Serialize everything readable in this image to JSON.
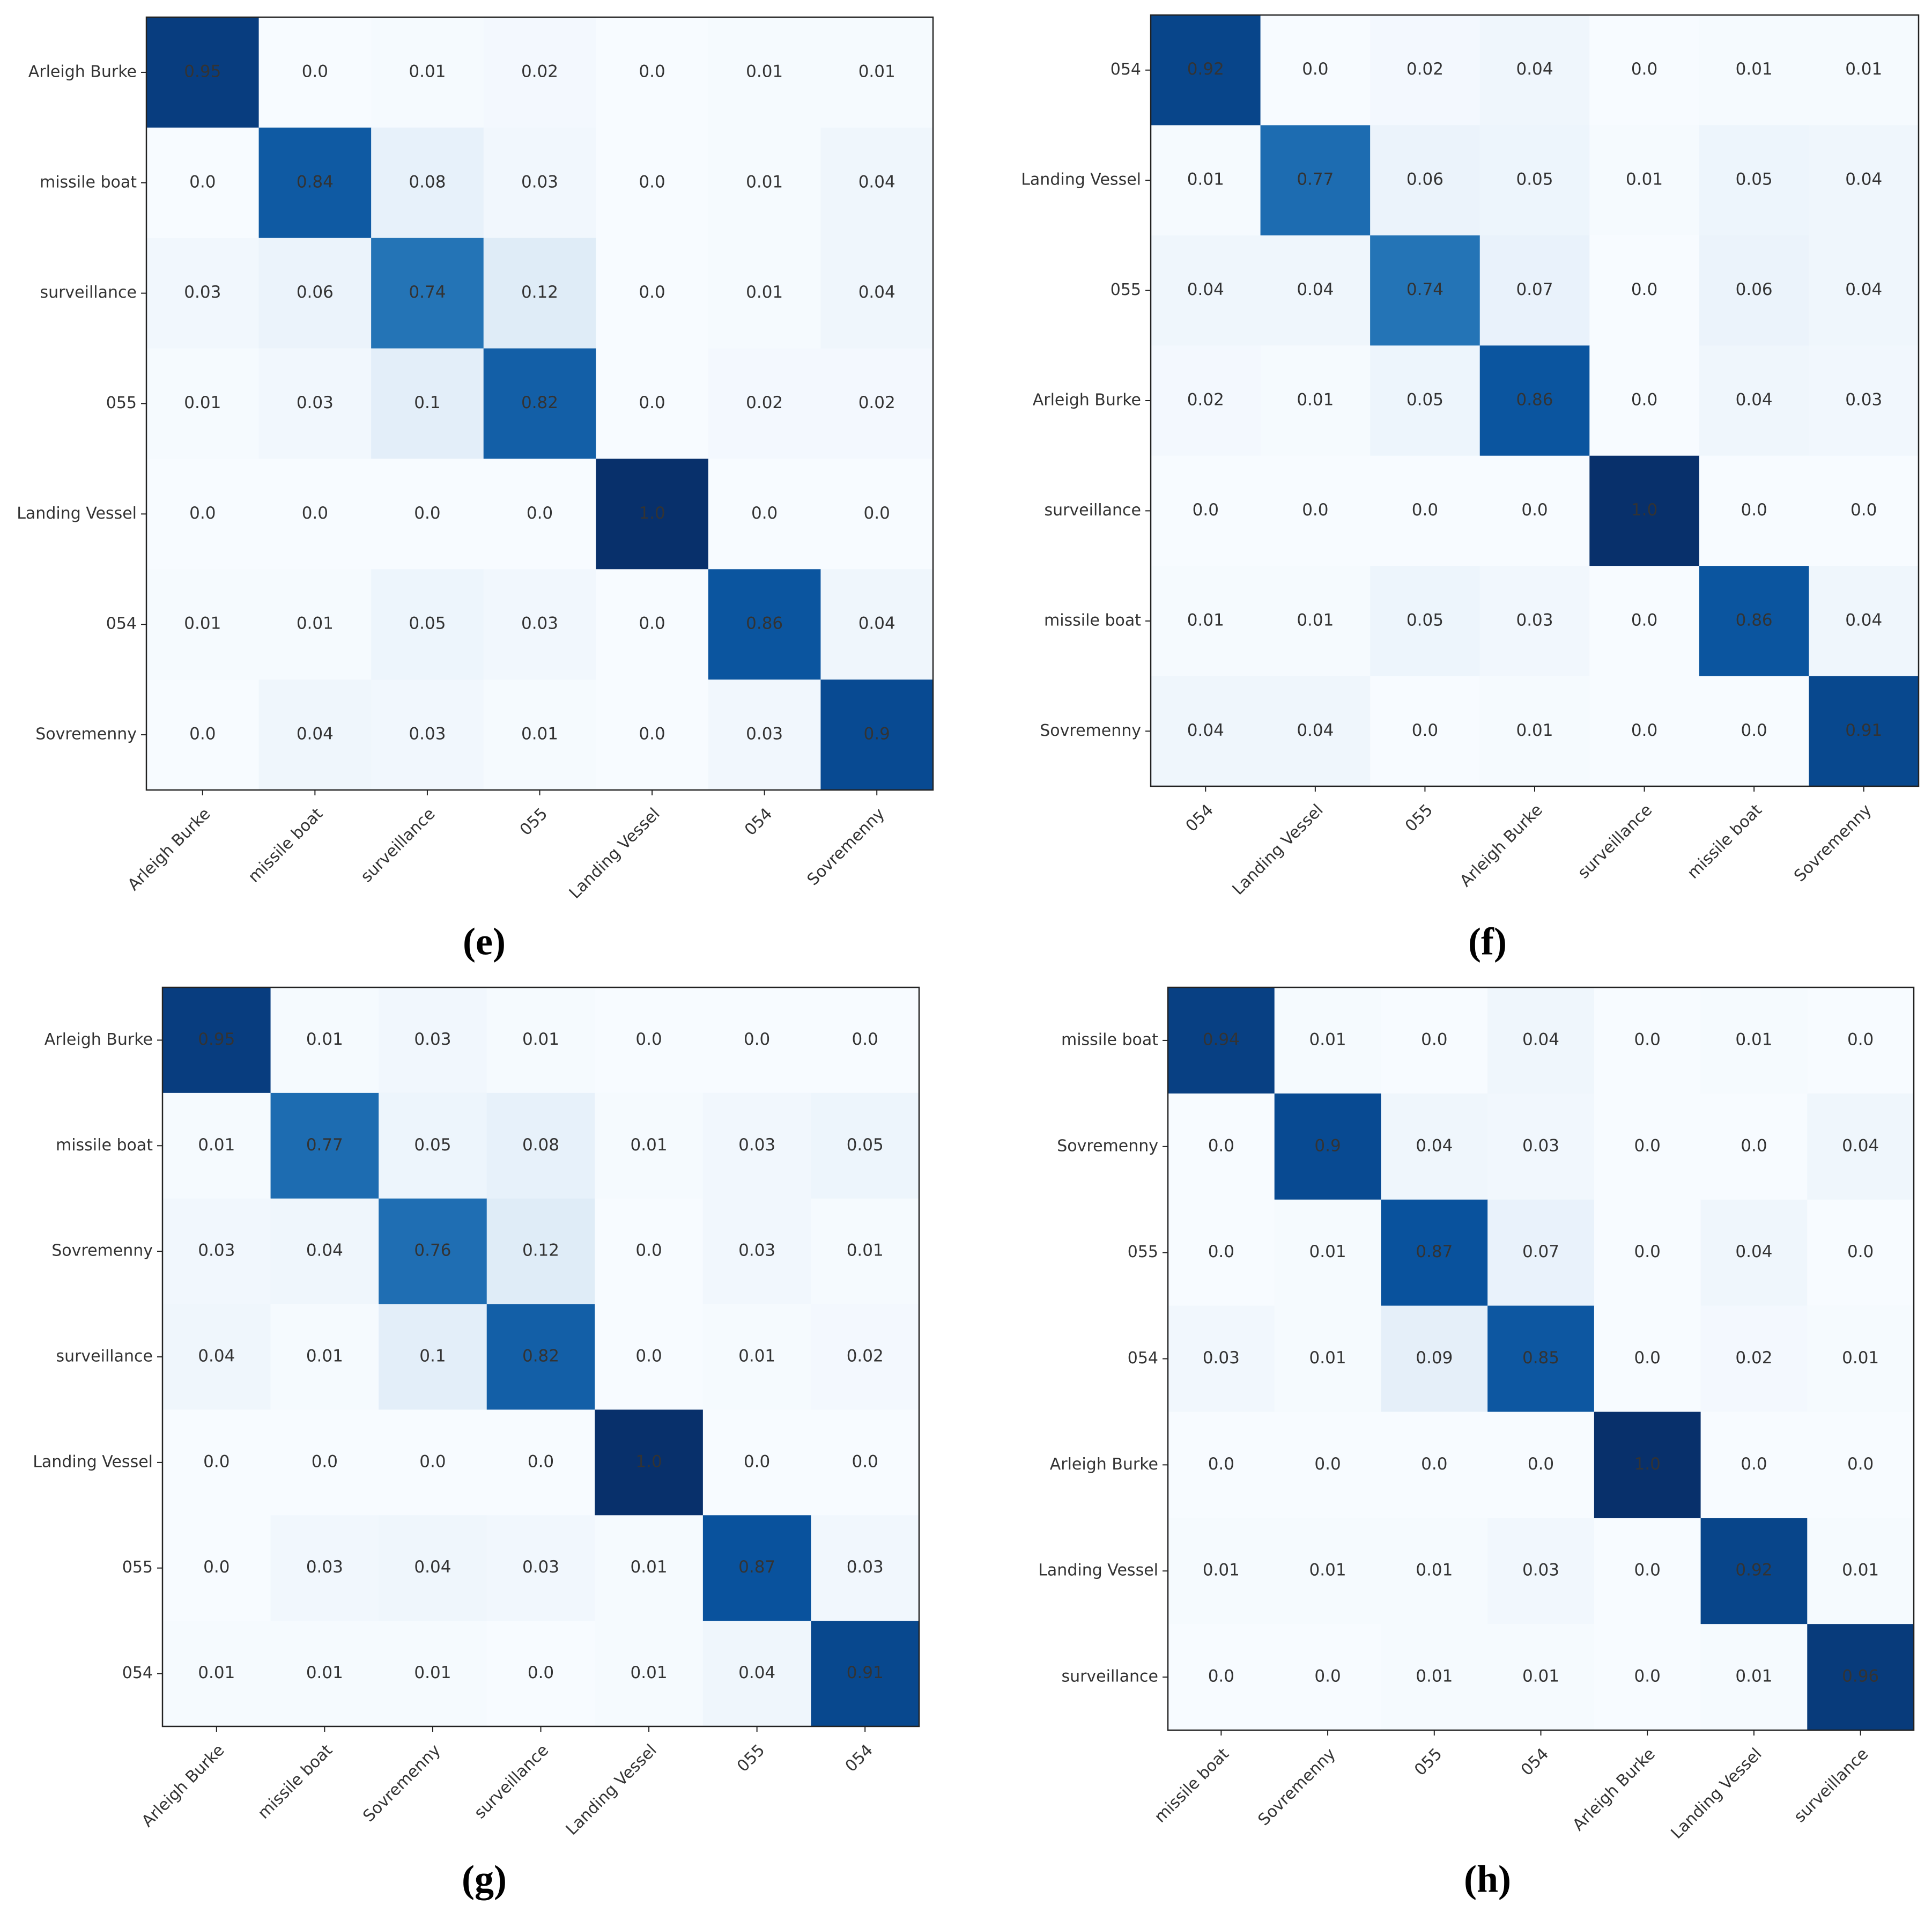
{
  "chart_data": [
    {
      "type": "heatmap",
      "caption": "(e)",
      "categories": [
        "Arleigh Burke",
        "missile boat",
        "surveillance",
        "055",
        "Landing Vessel",
        "054",
        "Sovremenny"
      ],
      "values": [
        [
          0.95,
          0,
          0.01,
          0.02,
          0,
          0.01,
          0.01
        ],
        [
          0,
          0.84,
          0.08,
          0.03,
          0,
          0.01,
          0.04
        ],
        [
          0.03,
          0.06,
          0.74,
          0.12,
          0,
          0.01,
          0.04
        ],
        [
          0.01,
          0.03,
          0.1,
          0.82,
          0,
          0.02,
          0.02
        ],
        [
          0,
          0,
          0,
          0,
          1,
          0,
          0
        ],
        [
          0.01,
          0.01,
          0.05,
          0.03,
          0,
          0.86,
          0.04
        ],
        [
          0,
          0.04,
          0.03,
          0.01,
          0,
          0.03,
          0.9
        ]
      ],
      "value_labels": [
        [
          "0.95",
          "0.0",
          "0.01",
          "0.02",
          "0.0",
          "0.01",
          "0.01"
        ],
        [
          "0.0",
          "0.84",
          "0.08",
          "0.03",
          "0.0",
          "0.01",
          "0.04"
        ],
        [
          "0.03",
          "0.06",
          "0.74",
          "0.12",
          "0.0",
          "0.01",
          "0.04"
        ],
        [
          "0.01",
          "0.03",
          "0.1",
          "0.82",
          "0.0",
          "0.02",
          "0.02"
        ],
        [
          "0.0",
          "0.0",
          "0.0",
          "0.0",
          "1.0",
          "0.0",
          "0.0"
        ],
        [
          "0.01",
          "0.01",
          "0.05",
          "0.03",
          "0.0",
          "0.86",
          "0.04"
        ],
        [
          "0.0",
          "0.04",
          "0.03",
          "0.01",
          "0.0",
          "0.03",
          "0.9"
        ]
      ],
      "colormap": [
        "#f7fbff",
        "#deebf7",
        "#c6dbef",
        "#9ecae1",
        "#6baed6",
        "#4292c6",
        "#2171b5",
        "#08519c",
        "#08306b"
      ]
    },
    {
      "type": "heatmap",
      "caption": "(f)",
      "categories": [
        "054",
        "Landing Vessel",
        "055",
        "Arleigh Burke",
        "surveillance",
        "missile boat",
        "Sovremenny"
      ],
      "values": [
        [
          0.92,
          0,
          0.02,
          0.04,
          0,
          0.01,
          0.01
        ],
        [
          0.01,
          0.77,
          0.06,
          0.05,
          0.01,
          0.05,
          0.04
        ],
        [
          0.04,
          0.04,
          0.74,
          0.07,
          0,
          0.06,
          0.04
        ],
        [
          0.02,
          0.01,
          0.05,
          0.86,
          0,
          0.04,
          0.03
        ],
        [
          0,
          0,
          0,
          0,
          1,
          0,
          0
        ],
        [
          0.01,
          0.01,
          0.05,
          0.03,
          0,
          0.86,
          0.04
        ],
        [
          0.04,
          0.04,
          0,
          0.01,
          0,
          0,
          0.91
        ]
      ],
      "value_labels": [
        [
          "0.92",
          "0.0",
          "0.02",
          "0.04",
          "0.0",
          "0.01",
          "0.01"
        ],
        [
          "0.01",
          "0.77",
          "0.06",
          "0.05",
          "0.01",
          "0.05",
          "0.04"
        ],
        [
          "0.04",
          "0.04",
          "0.74",
          "0.07",
          "0.0",
          "0.06",
          "0.04"
        ],
        [
          "0.02",
          "0.01",
          "0.05",
          "0.86",
          "0.0",
          "0.04",
          "0.03"
        ],
        [
          "0.0",
          "0.0",
          "0.0",
          "0.0",
          "1.0",
          "0.0",
          "0.0"
        ],
        [
          "0.01",
          "0.01",
          "0.05",
          "0.03",
          "0.0",
          "0.86",
          "0.04"
        ],
        [
          "0.04",
          "0.04",
          "0.0",
          "0.01",
          "0.0",
          "0.0",
          "0.91"
        ]
      ],
      "colormap": [
        "#f7fbff",
        "#deebf7",
        "#c6dbef",
        "#9ecae1",
        "#6baed6",
        "#4292c6",
        "#2171b5",
        "#08519c",
        "#08306b"
      ]
    },
    {
      "type": "heatmap",
      "caption": "(g)",
      "categories": [
        "Arleigh Burke",
        "missile boat",
        "Sovremenny",
        "surveillance",
        "Landing Vessel",
        "055",
        "054"
      ],
      "values": [
        [
          0.95,
          0.01,
          0.03,
          0.01,
          0,
          0,
          0
        ],
        [
          0.01,
          0.77,
          0.05,
          0.08,
          0.01,
          0.03,
          0.05
        ],
        [
          0.03,
          0.04,
          0.76,
          0.12,
          0,
          0.03,
          0.01
        ],
        [
          0.04,
          0.01,
          0.1,
          0.82,
          0,
          0.01,
          0.02
        ],
        [
          0,
          0,
          0,
          0,
          1,
          0,
          0
        ],
        [
          0,
          0.03,
          0.04,
          0.03,
          0.01,
          0.87,
          0.03
        ],
        [
          0.01,
          0.01,
          0.01,
          0,
          0.01,
          0.04,
          0.91
        ]
      ],
      "value_labels": [
        [
          "0.95",
          "0.01",
          "0.03",
          "0.01",
          "0.0",
          "0.0",
          "0.0"
        ],
        [
          "0.01",
          "0.77",
          "0.05",
          "0.08",
          "0.01",
          "0.03",
          "0.05"
        ],
        [
          "0.03",
          "0.04",
          "0.76",
          "0.12",
          "0.0",
          "0.03",
          "0.01"
        ],
        [
          "0.04",
          "0.01",
          "0.1",
          "0.82",
          "0.0",
          "0.01",
          "0.02"
        ],
        [
          "0.0",
          "0.0",
          "0.0",
          "0.0",
          "1.0",
          "0.0",
          "0.0"
        ],
        [
          "0.0",
          "0.03",
          "0.04",
          "0.03",
          "0.01",
          "0.87",
          "0.03"
        ],
        [
          "0.01",
          "0.01",
          "0.01",
          "0.0",
          "0.01",
          "0.04",
          "0.91"
        ]
      ],
      "colormap": [
        "#f7fbff",
        "#deebf7",
        "#c6dbef",
        "#9ecae1",
        "#6baed6",
        "#4292c6",
        "#2171b5",
        "#08519c",
        "#08306b"
      ]
    },
    {
      "type": "heatmap",
      "caption": "(h)",
      "categories": [
        "missile boat",
        "Sovremenny",
        "055",
        "054",
        "Arleigh Burke",
        "Landing Vessel",
        "surveillance"
      ],
      "values": [
        [
          0.94,
          0.01,
          0,
          0.04,
          0,
          0.01,
          0
        ],
        [
          0,
          0.9,
          0.04,
          0.03,
          0,
          0,
          0.04
        ],
        [
          0,
          0.01,
          0.87,
          0.07,
          0,
          0.04,
          0
        ],
        [
          0.03,
          0.01,
          0.09,
          0.85,
          0,
          0.02,
          0.01
        ],
        [
          0,
          0,
          0,
          0,
          1,
          0,
          0
        ],
        [
          0.01,
          0.01,
          0.01,
          0.03,
          0,
          0.92,
          0.01
        ],
        [
          0,
          0,
          0.01,
          0.01,
          0,
          0.01,
          0.96
        ]
      ],
      "value_labels": [
        [
          "0.94",
          "0.01",
          "0.0",
          "0.04",
          "0.0",
          "0.01",
          "0.0"
        ],
        [
          "0.0",
          "0.9",
          "0.04",
          "0.03",
          "0.0",
          "0.0",
          "0.04"
        ],
        [
          "0.0",
          "0.01",
          "0.87",
          "0.07",
          "0.0",
          "0.04",
          "0.0"
        ],
        [
          "0.03",
          "0.01",
          "0.09",
          "0.85",
          "0.0",
          "0.02",
          "0.01"
        ],
        [
          "0.0",
          "0.0",
          "0.0",
          "0.0",
          "1.0",
          "0.0",
          "0.0"
        ],
        [
          "0.01",
          "0.01",
          "0.01",
          "0.03",
          "0.0",
          "0.92",
          "0.01"
        ],
        [
          "0.0",
          "0.0",
          "0.01",
          "0.01",
          "0.0",
          "0.01",
          "0.96"
        ]
      ],
      "colormap": [
        "#f7fbff",
        "#deebf7",
        "#c6dbef",
        "#9ecae1",
        "#6baed6",
        "#4292c6",
        "#2171b5",
        "#08519c",
        "#08306b"
      ]
    }
  ]
}
